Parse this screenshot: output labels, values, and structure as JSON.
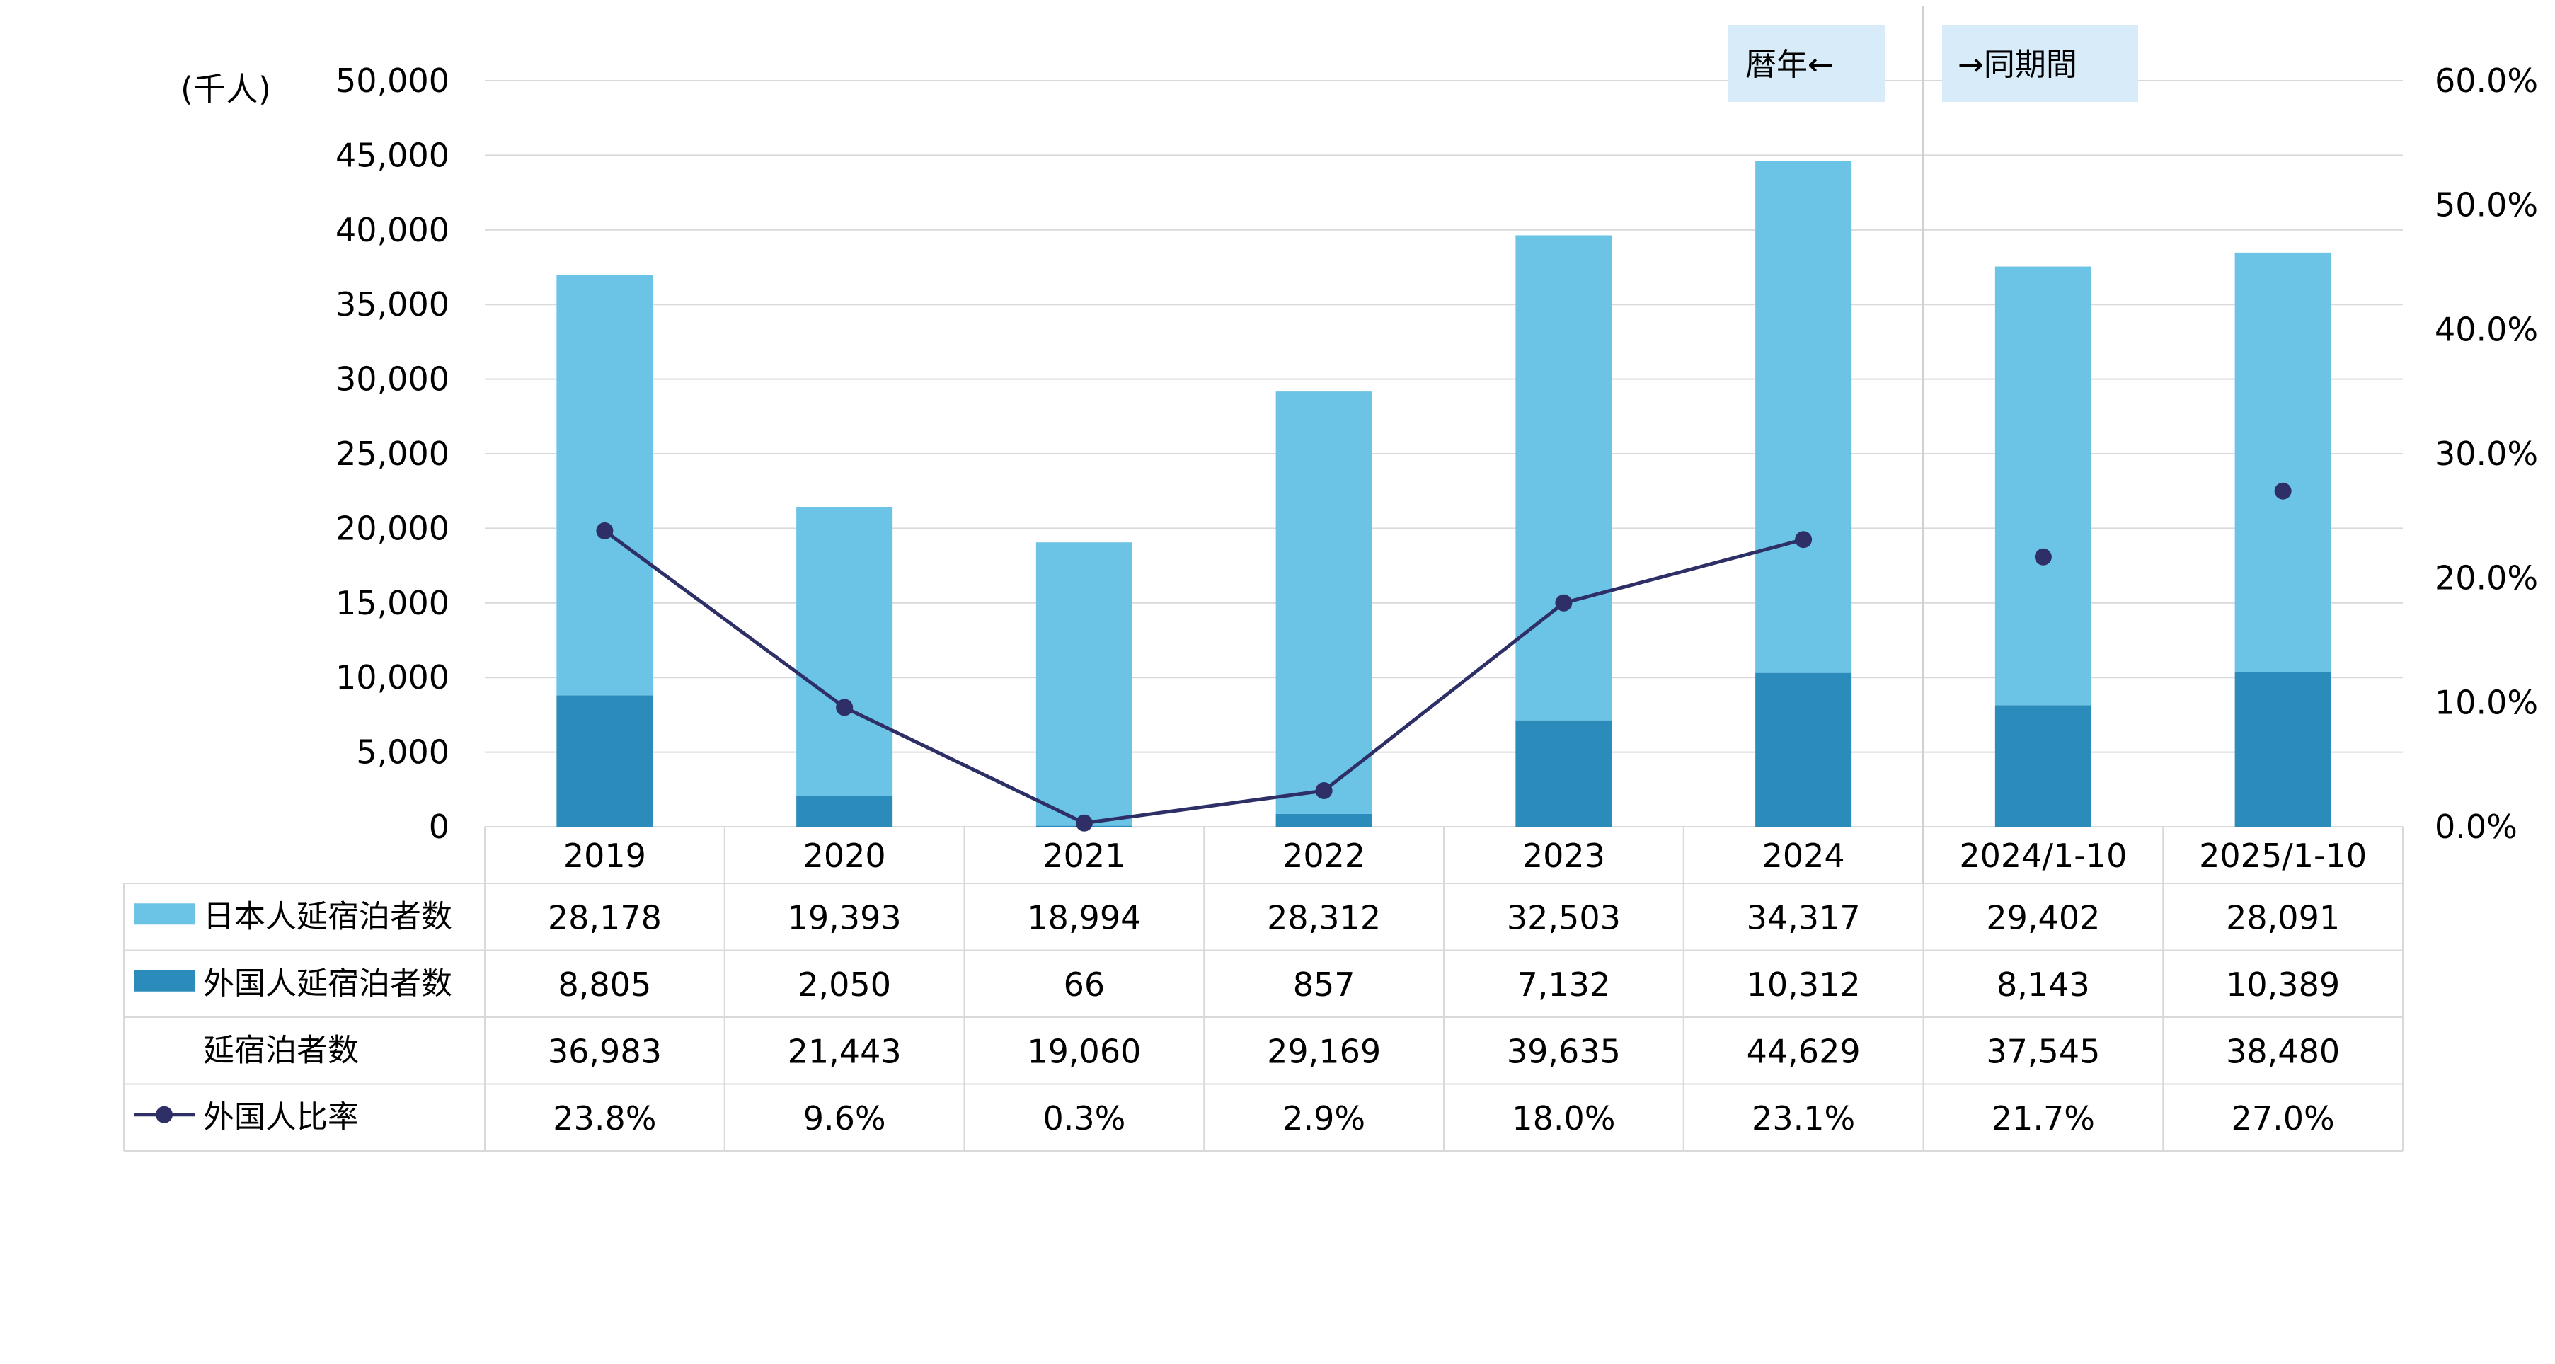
{
  "chart_data": {
    "type": "bar",
    "stacked": true,
    "unit_label": "(千人)",
    "categories": [
      "2019",
      "2020",
      "2021",
      "2022",
      "2023",
      "2024",
      "2024/1-10",
      "2025/1-10"
    ],
    "y_left": {
      "min": 0,
      "max": 50000,
      "step": 5000,
      "tick_labels": [
        "0",
        "5,000",
        "10,000",
        "15,000",
        "20,000",
        "25,000",
        "30,000",
        "35,000",
        "40,000",
        "45,000",
        "50,000"
      ]
    },
    "y_right": {
      "min": 0,
      "max": 60,
      "step": 10,
      "tick_labels": [
        "0.0%",
        "10.0%",
        "20.0%",
        "30.0%",
        "40.0%",
        "50.0%",
        "60.0%"
      ]
    },
    "grid": true,
    "divider_labels": {
      "left": "暦年←",
      "right": "→同期間"
    },
    "series": [
      {
        "name": "日本人延宿泊者数",
        "kind": "bar",
        "color": "#6BC3E6",
        "values": [
          28178,
          19393,
          18994,
          28312,
          32503,
          34317,
          29402,
          28091
        ],
        "labels": [
          "28,178",
          "19,393",
          "18,994",
          "28,312",
          "32,503",
          "34,317",
          "29,402",
          "28,091"
        ]
      },
      {
        "name": "外国人延宿泊者数",
        "kind": "bar",
        "color": "#2B8BBB",
        "values": [
          8805,
          2050,
          66,
          857,
          7132,
          10312,
          8143,
          10389
        ],
        "labels": [
          "8,805",
          "2,050",
          "66",
          "857",
          "7,132",
          "10,312",
          "8,143",
          "10,389"
        ]
      },
      {
        "name": "延宿泊者数",
        "kind": "total",
        "values": [
          36983,
          21443,
          19060,
          29169,
          39635,
          44629,
          37545,
          38480
        ],
        "labels": [
          "36,983",
          "21,443",
          "19,060",
          "29,169",
          "39,635",
          "44,629",
          "37,545",
          "38,480"
        ]
      },
      {
        "name": "外国人比率",
        "kind": "line",
        "axis": "right",
        "color": "#2E2F66",
        "values": [
          23.8,
          9.6,
          0.3,
          2.9,
          18.0,
          23.1,
          21.7,
          27.0
        ],
        "labels": [
          "23.8%",
          "9.6%",
          "0.3%",
          "2.9%",
          "18.0%",
          "23.1%",
          "21.7%",
          "27.0%"
        ]
      }
    ]
  }
}
